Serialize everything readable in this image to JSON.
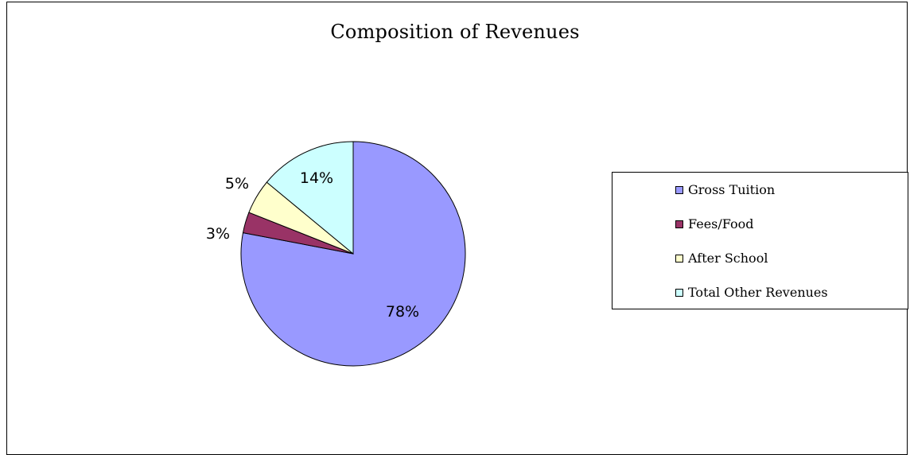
{
  "chart_data": {
    "type": "pie",
    "title": "Composition of Revenues",
    "start_angle": "12 o'clock",
    "direction": "clockwise",
    "legend_position": "right",
    "slices": [
      {
        "name": "Gross Tuition",
        "value": 78,
        "label": "78%",
        "color": "#9999ff"
      },
      {
        "name": "Fees/Food",
        "value": 3,
        "label": "3%",
        "color": "#993366"
      },
      {
        "name": "After School",
        "value": 5,
        "label": "5%",
        "color": "#ffffcc"
      },
      {
        "name": "Total Other Revenues",
        "value": 14,
        "label": "14%",
        "color": "#ccffff"
      }
    ]
  }
}
